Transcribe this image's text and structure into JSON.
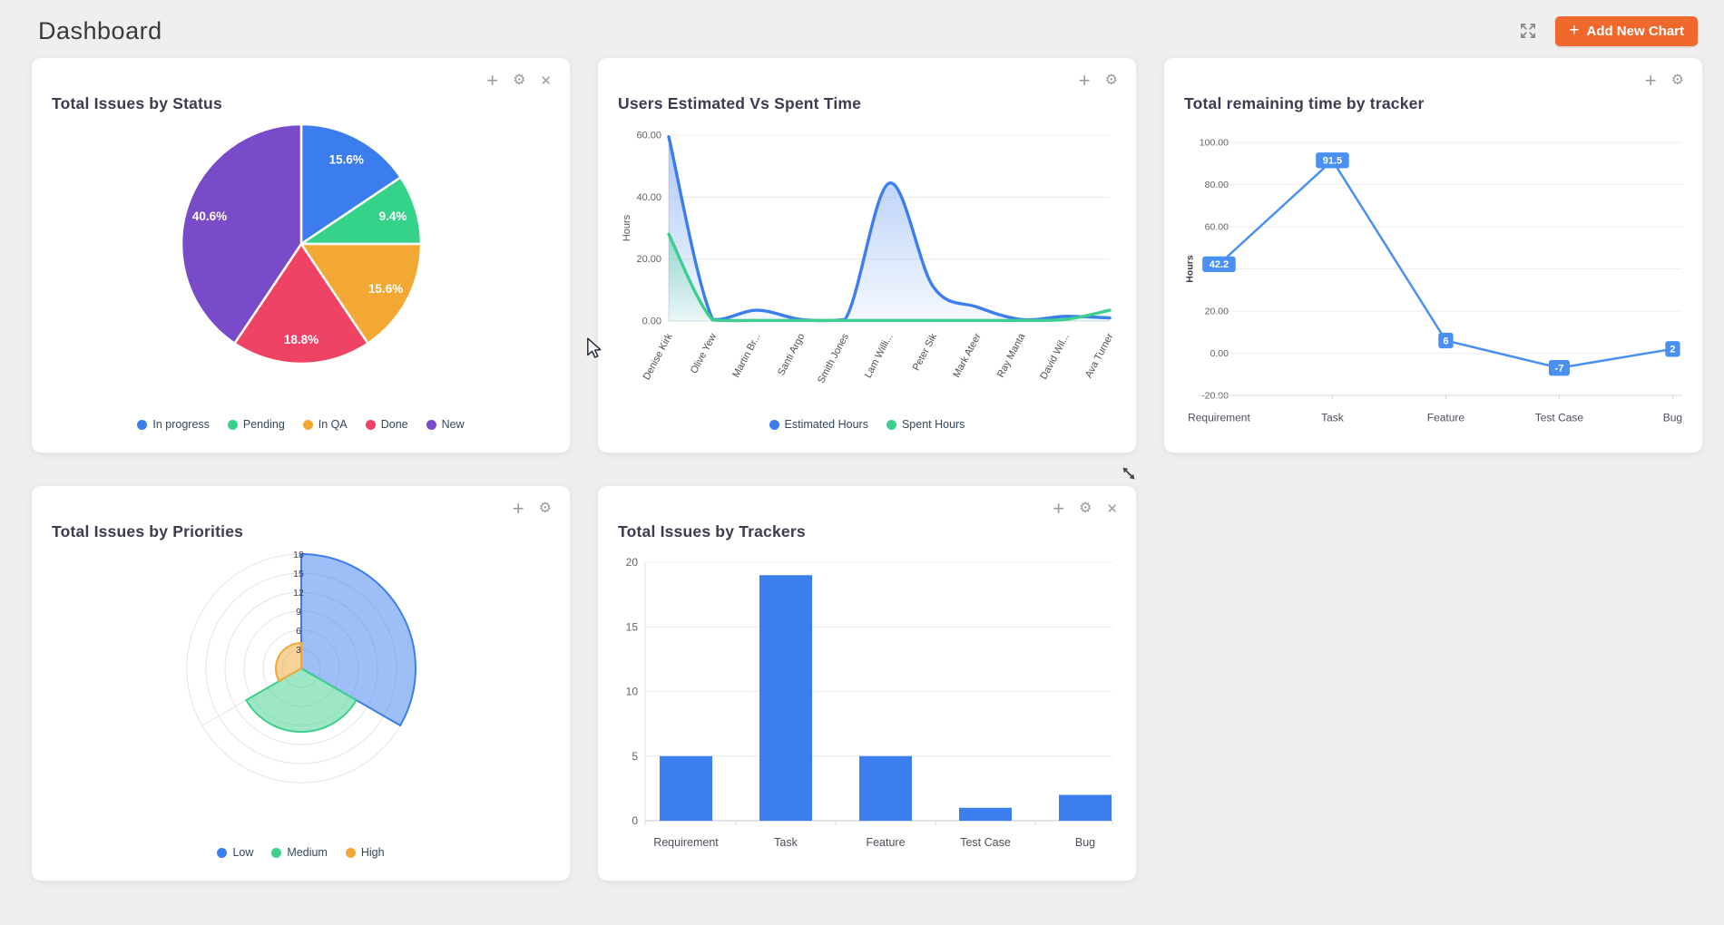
{
  "page": {
    "title": "Dashboard",
    "background": "#f0efee"
  },
  "header": {
    "add_chart_plus": "+",
    "add_chart_label": "Add New Chart",
    "add_chart_color": "#f0682c",
    "expand_icon": "expand-arrows"
  },
  "icons": {
    "plus": "+",
    "gear": "⚙",
    "close": "✕"
  },
  "chart_data": [
    {
      "type": "pie",
      "title": "Total Issues by Status",
      "categories": [
        "In progress",
        "Pending",
        "In QA",
        "Done",
        "New"
      ],
      "values_percent": [
        15.6,
        9.4,
        15.6,
        18.8,
        40.6
      ],
      "slice_labels": [
        "15.6%",
        "9.4%",
        "15.6%",
        "18.8%",
        "40.6%"
      ],
      "colors": [
        "#3c7dee",
        "#35d28a",
        "#f3a833",
        "#ef4365",
        "#7a4bc8"
      ],
      "start_angle": "top",
      "direction": "clockwise",
      "legend_position": "bottom",
      "legend": [
        {
          "label": "In progress",
          "color": "#3c7dee"
        },
        {
          "label": "Pending",
          "color": "#35d28a"
        },
        {
          "label": "In QA",
          "color": "#f3a833"
        },
        {
          "label": "Done",
          "color": "#ef4365"
        },
        {
          "label": "New",
          "color": "#7a4bc8"
        }
      ]
    },
    {
      "type": "area",
      "title": "Users Estimated Vs Spent Time",
      "categories": [
        "Denise Kirk",
        "Olive Yew",
        "Martin Br...",
        "Santi Argo",
        "Smith Jones",
        "Lam Willi...",
        "Peter Sik",
        "Mark Ateer",
        "Ray Manta",
        "David Wil...",
        "Ava Turner"
      ],
      "series": [
        {
          "name": "Estimated Hours",
          "color": "#3d7eef",
          "values": [
            59.5,
            0.5,
            3.5,
            0.5,
            0.5,
            44.5,
            11,
            4.5,
            0.5,
            1.5,
            1
          ]
        },
        {
          "name": "Spent Hours",
          "color": "#3ecf8e",
          "values": [
            28,
            0.3,
            0.2,
            0.2,
            0.2,
            0.2,
            0.2,
            0.2,
            0.2,
            0.5,
            3.5
          ]
        }
      ],
      "ylabel": "Hours",
      "ylim": [
        0,
        60
      ],
      "yticks": [
        0,
        20,
        40,
        60
      ],
      "ytick_format": "two-decimals",
      "grid": true,
      "legend_position": "bottom",
      "legend": [
        {
          "label": "Estimated Hours",
          "color": "#3d7eef"
        },
        {
          "label": "Spent Hours",
          "color": "#3ecf8e"
        }
      ]
    },
    {
      "type": "line",
      "title": "Total remaining time by tracker",
      "categories": [
        "Requirement",
        "Task",
        "Feature",
        "Test Case",
        "Bug"
      ],
      "values": [
        42.2,
        91.5,
        6,
        -7,
        2
      ],
      "point_labels": [
        "42.2",
        "91.5",
        "6",
        "-7",
        "2"
      ],
      "color": "#4a90f2",
      "label_box_color": "#4a90f2",
      "ylabel": "Hours",
      "ylim": [
        -20,
        100
      ],
      "yticks": [
        -20,
        0,
        20,
        40,
        60,
        80,
        100
      ],
      "ytick_format": "two-decimals",
      "grid": true
    },
    {
      "type": "polar_area",
      "title": "Total Issues by Priorities",
      "categories": [
        "Low",
        "Medium",
        "High"
      ],
      "values": [
        18,
        10,
        4
      ],
      "colors": [
        "#3d7eef",
        "#3ecf8e",
        "#f2a833"
      ],
      "rticks": [
        3,
        6,
        9,
        12,
        15,
        18
      ],
      "rmax": 18,
      "legend_position": "bottom",
      "legend": [
        {
          "label": "Low",
          "color": "#3d7eef"
        },
        {
          "label": "Medium",
          "color": "#3ecf8e"
        },
        {
          "label": "High",
          "color": "#f2a833"
        }
      ]
    },
    {
      "type": "bar",
      "title": "Total Issues by Trackers",
      "categories": [
        "Requirement",
        "Task",
        "Feature",
        "Test Case",
        "Bug"
      ],
      "values": [
        5,
        19,
        5,
        1,
        2
      ],
      "color": "#3d7eef",
      "ylim": [
        0,
        20
      ],
      "yticks": [
        0,
        5,
        10,
        15,
        20
      ],
      "grid": true
    }
  ]
}
